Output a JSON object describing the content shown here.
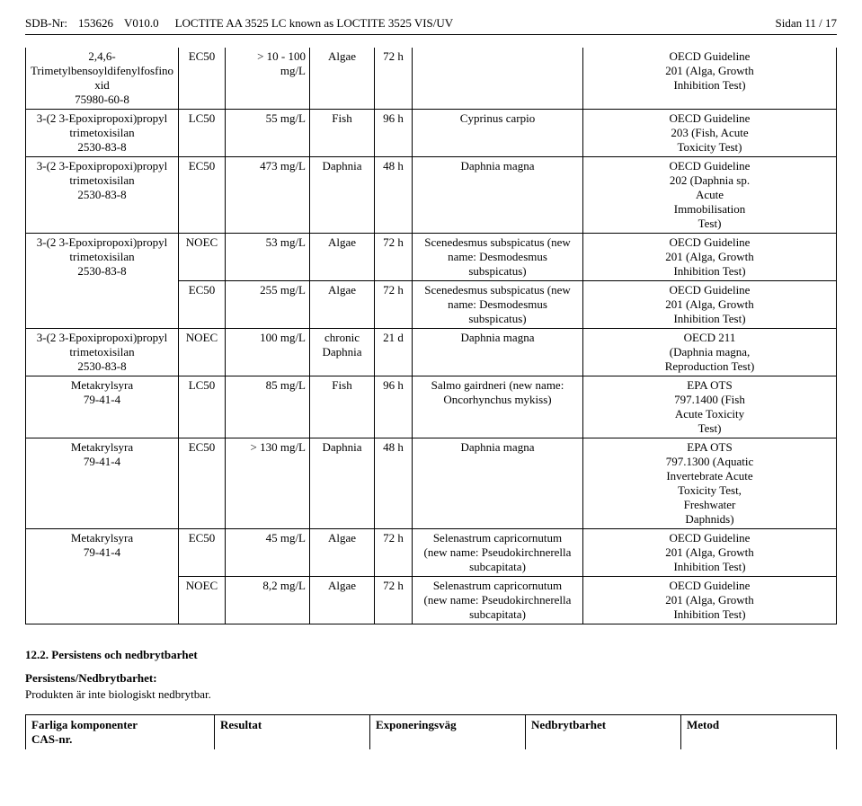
{
  "header": {
    "sdb_label": "SDB-Nr:",
    "sdb_value": "153626",
    "version": "V010.0",
    "title": "LOCTITE AA 3525 LC known as LOCTITE 3525 VIS/UV",
    "page": "Sidan 11 / 17"
  },
  "table": {
    "rows": [
      {
        "sub_lines": [
          "2,4,6-",
          "Trimetylbensoyldifenylfosfino",
          "xid",
          "75980-60-8"
        ],
        "sub_indent": true,
        "code": "EC50",
        "val": "> 10 - 100 mg/L",
        "med": "Algae",
        "dur": "72 h",
        "spec": "",
        "guide_lines": [
          "OECD Guideline",
          "201 (Alga, Growth",
          "Inhibition Test)"
        ]
      },
      {
        "sub_lines": [
          "3-(2 3-Epoxipropoxi)propyl",
          "trimetoxisilan",
          "2530-83-8"
        ],
        "sub_indent": false,
        "code": "LC50",
        "val": "55 mg/L",
        "med": "Fish",
        "dur": "96 h",
        "spec": "Cyprinus carpio",
        "guide_lines": [
          "OECD Guideline",
          "203 (Fish, Acute",
          "Toxicity Test)"
        ]
      },
      {
        "sub_lines": [
          "3-(2 3-Epoxipropoxi)propyl",
          "trimetoxisilan",
          "2530-83-8"
        ],
        "sub_indent": false,
        "code": "EC50",
        "val": "473 mg/L",
        "med": "Daphnia",
        "dur": "48 h",
        "spec": "Daphnia magna",
        "guide_lines": [
          "OECD Guideline",
          "202 (Daphnia sp.",
          "Acute",
          "Immobilisation",
          "Test)"
        ]
      },
      {
        "sub_lines": [
          "3-(2 3-Epoxipropoxi)propyl",
          "trimetoxisilan",
          "2530-83-8"
        ],
        "sub_indent": false,
        "code": "NOEC",
        "val": "53 mg/L",
        "med": "Algae",
        "dur": "72 h",
        "spec_lines": [
          "Scenedesmus subspicatus (new",
          "name: Desmodesmus",
          "subspicatus)"
        ],
        "guide_lines": [
          "OECD Guideline",
          "201 (Alga, Growth",
          "Inhibition Test)"
        ]
      },
      {
        "sub_lines": [
          ""
        ],
        "sub_indent": false,
        "code": "EC50",
        "val": "255 mg/L",
        "med": "Algae",
        "dur": "72 h",
        "spec_lines": [
          "Scenedesmus subspicatus (new",
          "name: Desmodesmus",
          "subspicatus)"
        ],
        "guide_lines": [
          "OECD Guideline",
          "201 (Alga, Growth",
          "Inhibition Test)"
        ]
      },
      {
        "sub_lines": [
          "3-(2 3-Epoxipropoxi)propyl",
          "trimetoxisilan",
          "2530-83-8"
        ],
        "sub_indent": false,
        "code": "NOEC",
        "val": "100 mg/L",
        "med_lines": [
          "chronic",
          "Daphnia"
        ],
        "dur": "21 d",
        "spec": "Daphnia magna",
        "guide_lines": [
          "OECD 211",
          "(Daphnia magna,",
          "Reproduction Test)"
        ]
      },
      {
        "sub_lines": [
          "Metakrylsyra",
          "79-41-4"
        ],
        "sub_indent": true,
        "code": "LC50",
        "val": "85 mg/L",
        "med": "Fish",
        "dur": "96 h",
        "spec_lines": [
          "Salmo gairdneri (new name:",
          "Oncorhynchus mykiss)"
        ],
        "guide_lines": [
          "EPA OTS",
          "797.1400 (Fish",
          "Acute Toxicity",
          "Test)"
        ]
      },
      {
        "sub_lines": [
          "Metakrylsyra",
          "79-41-4"
        ],
        "sub_indent": true,
        "code": "EC50",
        "val": "> 130 mg/L",
        "med": "Daphnia",
        "dur": "48 h",
        "spec": "Daphnia magna",
        "guide_lines": [
          "EPA OTS",
          "797.1300 (Aquatic",
          "Invertebrate Acute",
          "Toxicity Test,",
          "Freshwater",
          "Daphnids)"
        ]
      },
      {
        "sub_lines": [
          "Metakrylsyra",
          "79-41-4"
        ],
        "sub_indent": true,
        "code": "EC50",
        "val": "45 mg/L",
        "med": "Algae",
        "dur": "72 h",
        "spec_lines": [
          "Selenastrum capricornutum",
          "(new name: Pseudokirchnerella",
          "subcapitata)"
        ],
        "guide_lines": [
          "OECD Guideline",
          "201 (Alga, Growth",
          "Inhibition Test)"
        ]
      },
      {
        "sub_lines": [
          ""
        ],
        "sub_indent": false,
        "code": "NOEC",
        "val": "8,2 mg/L",
        "med": "Algae",
        "dur": "72 h",
        "spec_lines": [
          "Selenastrum capricornutum",
          "(new name: Pseudokirchnerella",
          "subcapitata)"
        ],
        "guide_lines": [
          "OECD Guideline",
          "201 (Alga, Growth",
          "Inhibition Test)"
        ]
      }
    ],
    "merge_groups": [
      {
        "col": "sub",
        "start": 3,
        "span": 2
      },
      {
        "col": "sub",
        "start": 8,
        "span": 2
      }
    ]
  },
  "section": {
    "title": "12.2. Persistens och nedbrytbarhet",
    "sub_title": "Persistens/Nedbrytbarhet:",
    "text": "Produkten är inte biologiskt nedbrytbar."
  },
  "footer_table": {
    "headers": [
      "Farliga komponenter\nCAS-nr.",
      "Resultat",
      "Exponeringsväg",
      "Nedbrytbarhet",
      "Metod"
    ]
  }
}
